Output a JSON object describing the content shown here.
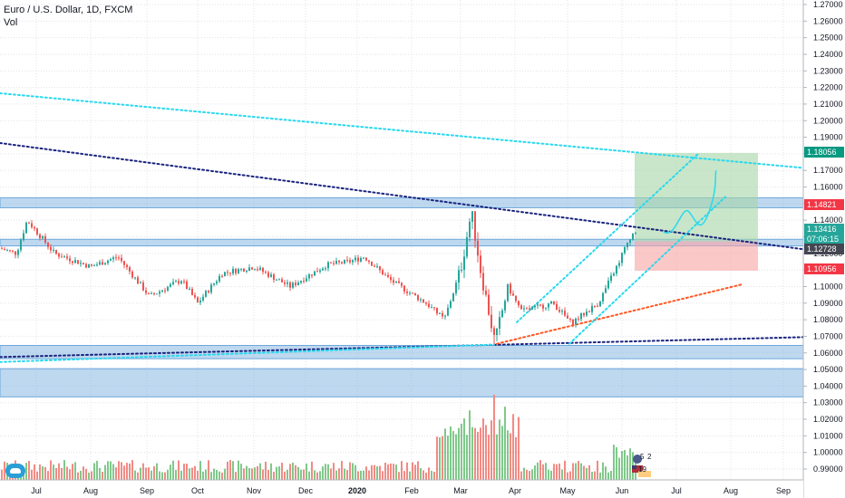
{
  "header": {
    "title": "Euro / U.S. Dollar, 1D, FXCM",
    "indicator": "Vol"
  },
  "colors": {
    "bull": "#26a69a",
    "bear": "#ef5350",
    "vol_bull": "#7fc98a",
    "vol_bear": "#f28b85",
    "zone": "#6ea8dc",
    "cyan": "#28d9ee",
    "navy": "#1a237e",
    "orange": "#ff5722",
    "profit": "#a5d6a7",
    "loss": "#f8a4a4",
    "grid": "#e0e3eb",
    "price_tag_green": "#089981",
    "price_tag_red": "#f23645",
    "price_tag_teal": "#26a69a",
    "price_tag_gray": "#434651"
  },
  "price_axis": {
    "labels": [
      "1.27000",
      "1.26000",
      "1.25000",
      "1.24000",
      "1.23000",
      "1.22000",
      "1.21000",
      "1.20000",
      "1.19000",
      "1.18000",
      "1.17000",
      "1.16000",
      "1.15000",
      "1.14000",
      "1.13000",
      "1.12000",
      "1.11000",
      "1.10000",
      "1.09000",
      "1.08000",
      "1.07000",
      "1.06000",
      "1.05000",
      "1.04000",
      "1.03000",
      "1.02000",
      "1.01000",
      "1.00000",
      "0.99000"
    ],
    "tags": [
      {
        "label": "1.18056",
        "color": "#089981"
      },
      {
        "label": "1.14821",
        "color": "#f23645"
      },
      {
        "label": "1.13416",
        "color": "#26a69a"
      },
      {
        "label": "07:06:15",
        "color": "#26a69a"
      },
      {
        "label": "1.12728",
        "color": "#434651"
      },
      {
        "label": "1.10956",
        "color": "#f23645"
      }
    ]
  },
  "time_axis": {
    "labels": [
      "Jul",
      "Aug",
      "Sep",
      "Oct",
      "Nov",
      "Dec",
      "2020",
      "Feb",
      "Mar",
      "Apr",
      "May",
      "Jun",
      "Jul",
      "Aug",
      "Sep"
    ]
  },
  "badges": {
    "count_a": "5",
    "count_b": "2",
    "count_c": "19"
  },
  "chart_data": {
    "type": "candlestick",
    "symbol": "EURUSD",
    "timeframe": "1D",
    "ylim": [
      0.985,
      1.275
    ],
    "x": [
      "2019-06",
      "2019-07",
      "2019-08",
      "2019-09",
      "2019-10",
      "2019-11",
      "2019-12",
      "2020-01",
      "2020-02",
      "2020-03",
      "2020-04",
      "2020-05",
      "2020-06"
    ],
    "close": [
      1.128,
      1.115,
      1.11,
      1.097,
      1.113,
      1.102,
      1.118,
      1.108,
      1.098,
      1.103,
      1.088,
      1.096,
      1.134
    ],
    "annotations": {
      "supply_zone": [
        1.1475,
        1.1535
      ],
      "mid_zone": [
        1.1245,
        1.1285
      ],
      "demand_zone": [
        1.0565,
        1.0645
      ],
      "lower_zone": [
        1.0335,
        1.0505
      ],
      "long_position": {
        "entry": 1.12728,
        "target": 1.18056,
        "stop": 1.10956
      }
    }
  }
}
